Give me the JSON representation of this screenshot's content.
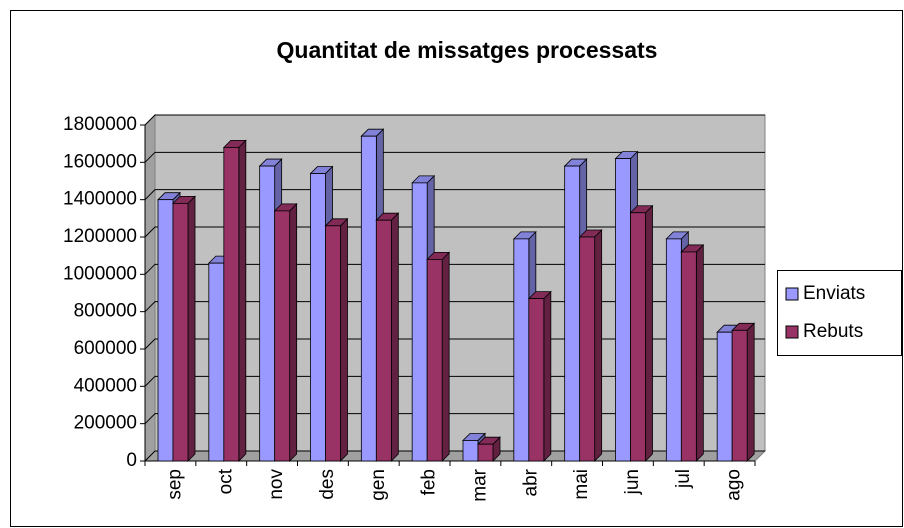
{
  "chart_data": {
    "type": "bar3d",
    "title": "Quantitat de missatges processats",
    "categories": [
      "sep",
      "oct",
      "nov",
      "des",
      "gen",
      "feb",
      "mar",
      "abr",
      "mai",
      "jun",
      "jul",
      "ago"
    ],
    "series": [
      {
        "name": "Enviats",
        "color": "#9999ff",
        "values": [
          1400000,
          1060000,
          1580000,
          1540000,
          1740000,
          1490000,
          110000,
          1190000,
          1580000,
          1620000,
          1190000,
          690000
        ]
      },
      {
        "name": "Rebuts",
        "color": "#993366",
        "values": [
          1380000,
          1680000,
          1340000,
          1260000,
          1290000,
          1080000,
          90000,
          870000,
          1200000,
          1330000,
          1120000,
          700000
        ]
      }
    ],
    "ylim": [
      0,
      1800000
    ],
    "yticks": [
      0,
      200000,
      400000,
      600000,
      800000,
      1000000,
      1200000,
      1400000,
      1600000,
      1800000
    ],
    "grid": true,
    "legend": "right"
  }
}
